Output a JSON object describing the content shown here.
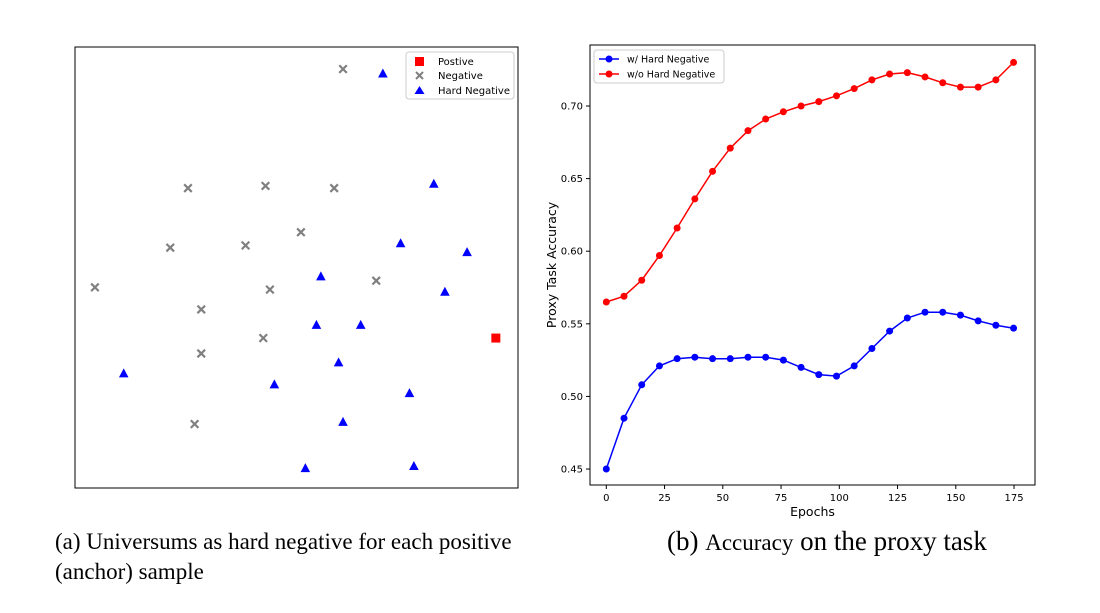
{
  "chart_data": [
    {
      "type": "scatter",
      "title": "",
      "xlabel": "",
      "ylabel": "",
      "axes_visible": false,
      "xlim": [
        0,
        10
      ],
      "ylim": [
        0,
        10
      ],
      "legend": {
        "placement": "top-right",
        "entries": [
          "Postive",
          "Negative",
          "Hard Negative"
        ]
      },
      "series": [
        {
          "name": "Postive",
          "marker": "square",
          "color": "#ff0000",
          "points": [
            [
              9.5,
              3.4
            ]
          ]
        },
        {
          "name": "Negative",
          "marker": "x",
          "color": "#808080",
          "points": [
            [
              6.05,
              9.5
            ],
            [
              2.55,
              6.8
            ],
            [
              4.3,
              6.85
            ],
            [
              5.85,
              6.8
            ],
            [
              2.15,
              5.45
            ],
            [
              3.85,
              5.5
            ],
            [
              5.1,
              5.8
            ],
            [
              0.45,
              4.55
            ],
            [
              4.4,
              4.5
            ],
            [
              6.8,
              4.7
            ],
            [
              2.85,
              4.05
            ],
            [
              4.25,
              3.4
            ],
            [
              2.85,
              3.05
            ],
            [
              2.7,
              1.45
            ]
          ]
        },
        {
          "name": "Hard Negative",
          "marker": "triangle",
          "color": "#0000ff",
          "points": [
            [
              6.95,
              9.4
            ],
            [
              8.1,
              6.9
            ],
            [
              7.35,
              5.55
            ],
            [
              8.85,
              5.35
            ],
            [
              5.55,
              4.8
            ],
            [
              8.35,
              4.45
            ],
            [
              5.45,
              3.7
            ],
            [
              6.45,
              3.7
            ],
            [
              1.1,
              2.6
            ],
            [
              4.5,
              2.35
            ],
            [
              5.95,
              2.85
            ],
            [
              7.55,
              2.15
            ],
            [
              6.05,
              1.5
            ],
            [
              7.65,
              0.5
            ],
            [
              5.2,
              0.45
            ]
          ]
        }
      ]
    },
    {
      "type": "line",
      "title": "",
      "xlabel": "Epochs",
      "ylabel": "Proxy Task Accuracy",
      "xlim": [
        -7,
        184
      ],
      "ylim": [
        0.439,
        0.742
      ],
      "xticks": [
        0,
        25,
        50,
        75,
        100,
        125,
        150,
        175
      ],
      "yticks": [
        0.45,
        0.5,
        0.55,
        0.6,
        0.65,
        0.7
      ],
      "ytick_labels": [
        "0.45",
        "0.50",
        "0.55",
        "0.60",
        "0.65",
        "0.70"
      ],
      "grid": false,
      "legend": {
        "placement": "top-left",
        "entries": [
          "w/ Hard Negative",
          "w/o Hard Negative"
        ]
      },
      "x": [
        0,
        7.6,
        15.2,
        22.8,
        30.4,
        38,
        45.6,
        53.2,
        60.8,
        68.4,
        76,
        83.6,
        91.2,
        98.8,
        106.4,
        114,
        121.6,
        129.2,
        136.8,
        144.4,
        152,
        159.6,
        167.2,
        174.8
      ],
      "series": [
        {
          "name": "w/ Hard Negative",
          "color": "#0000ff",
          "values": [
            0.45,
            0.485,
            0.508,
            0.521,
            0.526,
            0.527,
            0.526,
            0.526,
            0.527,
            0.527,
            0.525,
            0.52,
            0.515,
            0.514,
            0.521,
            0.533,
            0.545,
            0.554,
            0.558,
            0.558,
            0.556,
            0.552,
            0.549,
            0.547
          ]
        },
        {
          "name": "w/o Hard Negative",
          "color": "#ff0000",
          "values": [
            0.565,
            0.569,
            0.58,
            0.597,
            0.616,
            0.636,
            0.655,
            0.671,
            0.683,
            0.691,
            0.696,
            0.7,
            0.703,
            0.707,
            0.712,
            0.718,
            0.722,
            0.723,
            0.72,
            0.716,
            0.713,
            0.713,
            0.718,
            0.73
          ]
        }
      ]
    }
  ],
  "captions": {
    "a_line1": "(a) Universums as hard negative for each positive",
    "a_line2": "(anchor) sample",
    "b_prefix": "(b) ",
    "b_word": "Accuracy",
    "b_suffix": " on the proxy task"
  }
}
